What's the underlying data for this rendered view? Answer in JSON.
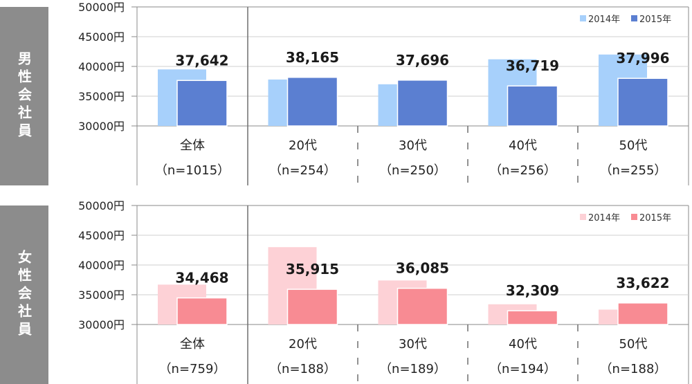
{
  "chart_data": [
    {
      "type": "bar",
      "panel_label": "男性会社員",
      "categories": [
        "全体",
        "20代",
        "30代",
        "40代",
        "50代"
      ],
      "sample_sizes": [
        "（n=1015）",
        "（n=254）",
        "（n=250）",
        "（n=256）",
        "（n=255）"
      ],
      "series": [
        {
          "name": "2014年",
          "values": [
            39500,
            37800,
            37000,
            41200,
            42000
          ]
        },
        {
          "name": "2015年",
          "values": [
            37642,
            38165,
            37696,
            36719,
            37996
          ]
        }
      ],
      "data_labels": [
        "37,642",
        "38,165",
        "37,696",
        "36,719",
        "37,996"
      ],
      "yticks": [
        "50000円",
        "45000円",
        "40000円",
        "35000円",
        "30000円"
      ],
      "ylim": [
        30000,
        50000
      ],
      "colors": {
        "2014年": "#a7d0fb",
        "2015年": "#5b7fd1"
      },
      "legend_position": "top-right",
      "grid": true
    },
    {
      "type": "bar",
      "panel_label": "女性会社員",
      "categories": [
        "全体",
        "20代",
        "30代",
        "40代",
        "50代"
      ],
      "sample_sizes": [
        "（n=759）",
        "（n=188）",
        "（n=189）",
        "（n=194）",
        "（n=188）"
      ],
      "series": [
        {
          "name": "2014年",
          "values": [
            36700,
            43000,
            37400,
            33400,
            32500
          ]
        },
        {
          "name": "2015年",
          "values": [
            34468,
            35915,
            36085,
            32309,
            33622
          ]
        }
      ],
      "data_labels": [
        "34,468",
        "35,915",
        "36,085",
        "32,309",
        "33,622"
      ],
      "yticks": [
        "50000円",
        "45000円",
        "40000円",
        "35000円",
        "30000円"
      ],
      "ylim": [
        30000,
        50000
      ],
      "colors": {
        "2014年": "#fdd1d6",
        "2015年": "#f88b93"
      },
      "legend_position": "top-right",
      "grid": true
    }
  ]
}
